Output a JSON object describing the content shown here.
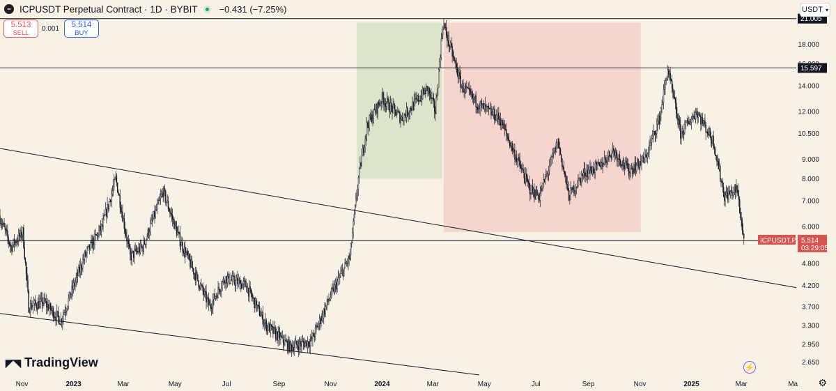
{
  "header": {
    "symbol_icon": "icp-logo-icon",
    "title": "ICPUSDT Perpetual Contract · 1D · BYBIT",
    "change": "−0.431 (−7.25%)"
  },
  "trade": {
    "sell_price": "5.513",
    "sell_label": "SELL",
    "spread": "0.001",
    "buy_price": "5.514",
    "buy_label": "BUY"
  },
  "currency": "USDT",
  "brand": "TradingView",
  "colors": {
    "background": "#f7f1e6",
    "up_candle": "#131722",
    "down_candle": "#131722",
    "long_zone": "#c8ddb8",
    "short_zone": "#f2c4bf",
    "last_price": "#d9534f"
  },
  "chart_data": {
    "type": "candlestick",
    "scale": "log",
    "ylim": [
      2.45,
      23.5
    ],
    "x_range": [
      "2022-10-06",
      "2025-05-05"
    ],
    "y_ticks": [
      2.65,
      2.95,
      3.3,
      3.7,
      4.2,
      4.8,
      6.0,
      7.0,
      8.0,
      9.0,
      10.5,
      12.0,
      14.0,
      16.0,
      18.0
    ],
    "y_tick_labels": [
      "2.650",
      "2.950",
      "3.300",
      "3.700",
      "4.200",
      "4.800",
      "6.000",
      "7.000",
      "8.000",
      "9.000",
      "10.500",
      "12.000",
      "14.000",
      "16.000",
      "18.000"
    ],
    "x_ticks": [
      {
        "date": "2022-11-01",
        "label": "Nov",
        "bold": false
      },
      {
        "date": "2023-01-01",
        "label": "2023",
        "bold": true
      },
      {
        "date": "2023-03-01",
        "label": "Mar",
        "bold": false
      },
      {
        "date": "2023-05-01",
        "label": "May",
        "bold": false
      },
      {
        "date": "2023-07-01",
        "label": "Jul",
        "bold": false
      },
      {
        "date": "2023-09-01",
        "label": "Sep",
        "bold": false
      },
      {
        "date": "2023-11-01",
        "label": "Nov",
        "bold": false
      },
      {
        "date": "2024-01-01",
        "label": "2024",
        "bold": true
      },
      {
        "date": "2024-03-01",
        "label": "Mar",
        "bold": false
      },
      {
        "date": "2024-05-01",
        "label": "May",
        "bold": false
      },
      {
        "date": "2024-07-01",
        "label": "Jul",
        "bold": false
      },
      {
        "date": "2024-09-01",
        "label": "Sep",
        "bold": false
      },
      {
        "date": "2024-11-01",
        "label": "Nov",
        "bold": false
      },
      {
        "date": "2025-01-01",
        "label": "2025",
        "bold": true
      },
      {
        "date": "2025-03-01",
        "label": "Mar",
        "bold": false
      },
      {
        "date": "2025-05-01",
        "label": "Ma",
        "bold": false
      }
    ],
    "price_path": [
      {
        "date": "2022-10-06",
        "close": 6.4
      },
      {
        "date": "2022-10-20",
        "close": 5.3
      },
      {
        "date": "2022-11-03",
        "close": 5.8
      },
      {
        "date": "2022-11-10",
        "close": 3.7
      },
      {
        "date": "2022-11-28",
        "close": 3.8
      },
      {
        "date": "2022-12-18",
        "close": 3.4
      },
      {
        "date": "2023-01-15",
        "close": 5.0
      },
      {
        "date": "2023-02-05",
        "close": 6.0
      },
      {
        "date": "2023-02-21",
        "close": 8.0
      },
      {
        "date": "2023-03-10",
        "close": 5.0
      },
      {
        "date": "2023-03-25",
        "close": 5.3
      },
      {
        "date": "2023-04-18",
        "close": 7.4
      },
      {
        "date": "2023-05-08",
        "close": 5.5
      },
      {
        "date": "2023-06-12",
        "close": 3.7
      },
      {
        "date": "2023-06-30",
        "close": 4.4
      },
      {
        "date": "2023-07-25",
        "close": 4.2
      },
      {
        "date": "2023-08-18",
        "close": 3.3
      },
      {
        "date": "2023-09-15",
        "close": 2.9
      },
      {
        "date": "2023-10-10",
        "close": 3.0
      },
      {
        "date": "2023-11-01",
        "close": 3.9
      },
      {
        "date": "2023-11-25",
        "close": 5.0
      },
      {
        "date": "2023-12-05",
        "close": 8.0
      },
      {
        "date": "2023-12-15",
        "close": 11.0
      },
      {
        "date": "2024-01-02",
        "close": 13.0
      },
      {
        "date": "2024-01-25",
        "close": 11.5
      },
      {
        "date": "2024-02-25",
        "close": 13.8
      },
      {
        "date": "2024-03-05",
        "close": 12.0
      },
      {
        "date": "2024-03-14",
        "close": 20.5
      },
      {
        "date": "2024-04-05",
        "close": 14.0
      },
      {
        "date": "2024-04-25",
        "close": 12.5
      },
      {
        "date": "2024-05-20",
        "close": 11.5
      },
      {
        "date": "2024-06-05",
        "close": 9.5
      },
      {
        "date": "2024-06-25",
        "close": 7.5
      },
      {
        "date": "2024-07-06",
        "close": 7.2
      },
      {
        "date": "2024-07-28",
        "close": 10.0
      },
      {
        "date": "2024-08-10",
        "close": 7.2
      },
      {
        "date": "2024-08-28",
        "close": 8.3
      },
      {
        "date": "2024-09-15",
        "close": 8.6
      },
      {
        "date": "2024-10-01",
        "close": 9.5
      },
      {
        "date": "2024-10-20",
        "close": 8.4
      },
      {
        "date": "2024-11-08",
        "close": 9.0
      },
      {
        "date": "2024-11-25",
        "close": 11.5
      },
      {
        "date": "2024-12-05",
        "close": 15.5
      },
      {
        "date": "2024-12-20",
        "close": 10.5
      },
      {
        "date": "2025-01-08",
        "close": 12.0
      },
      {
        "date": "2025-01-28",
        "close": 10.0
      },
      {
        "date": "2025-02-10",
        "close": 7.2
      },
      {
        "date": "2025-02-25",
        "close": 7.5
      },
      {
        "date": "2025-03-05",
        "close": 5.514
      }
    ],
    "horizontal_lines": [
      {
        "price": 21.005,
        "label": "21.005"
      },
      {
        "price": 15.597,
        "label": "15.597"
      },
      {
        "price": 5.508,
        "label": "5.508"
      }
    ],
    "trend_lines": [
      {
        "from": {
          "date": "2022-10-06",
          "price": 9.6
        },
        "to": {
          "date": "2025-05-05",
          "price": 4.15
        }
      },
      {
        "from": {
          "date": "2022-10-06",
          "price": 3.55
        },
        "to": {
          "date": "2024-04-25",
          "price": 2.45
        }
      }
    ],
    "zones": [
      {
        "kind": "long",
        "start": "2023-12-02",
        "end": "2024-03-12",
        "low": 8.0,
        "high": 20.5
      },
      {
        "kind": "short",
        "start": "2024-03-14",
        "end": "2024-11-02",
        "low": 5.8,
        "high": 20.5
      }
    ],
    "last_price": {
      "price": 5.514,
      "symbol": "ICPUSDT.P",
      "value_label": "5.514",
      "countdown": "03:29:05"
    }
  }
}
